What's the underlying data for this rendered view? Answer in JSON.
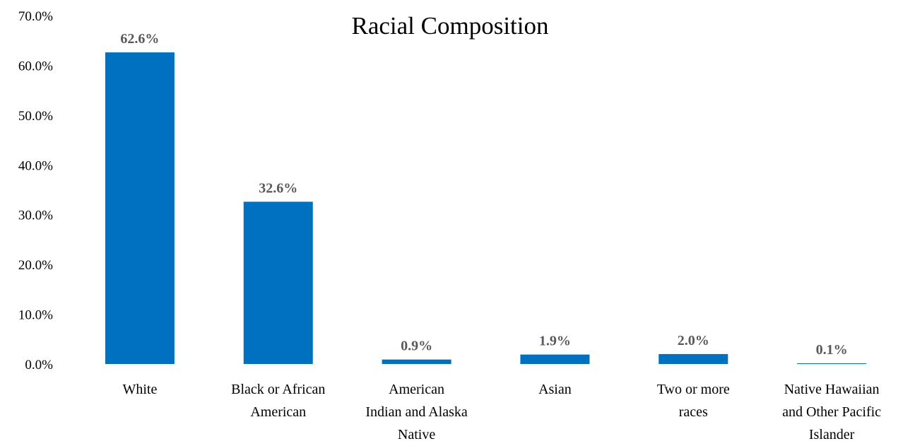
{
  "chart_data": {
    "type": "bar",
    "title": "Racial Composition",
    "categories": [
      "White",
      "Black or African American",
      "American Indian and Alaska Native",
      "Asian",
      "Two or more races",
      "Native Hawaiian and Other Pacific Islander"
    ],
    "category_label_lines": [
      [
        "White"
      ],
      [
        "Black or African",
        "American"
      ],
      [
        "American",
        "Indian and Alaska",
        "Native"
      ],
      [
        "Asian"
      ],
      [
        "Two or more",
        "races"
      ],
      [
        "Native Hawaiian",
        "and Other Pacific",
        "Islander"
      ]
    ],
    "values": [
      62.6,
      32.6,
      0.9,
      1.9,
      2.0,
      0.1
    ],
    "data_labels": [
      "62.6%",
      "32.6%",
      "0.9%",
      "1.9%",
      "2.0%",
      "0.1%"
    ],
    "y_ticks": [
      "0.0%",
      "10.0%",
      "20.0%",
      "30.0%",
      "40.0%",
      "50.0%",
      "60.0%",
      "70.0%"
    ],
    "ylim": [
      0,
      70
    ],
    "xlabel": "",
    "ylabel": "",
    "grid": false,
    "legend": "none",
    "bar_color": "#0070C0",
    "data_label_color": "#595959"
  }
}
